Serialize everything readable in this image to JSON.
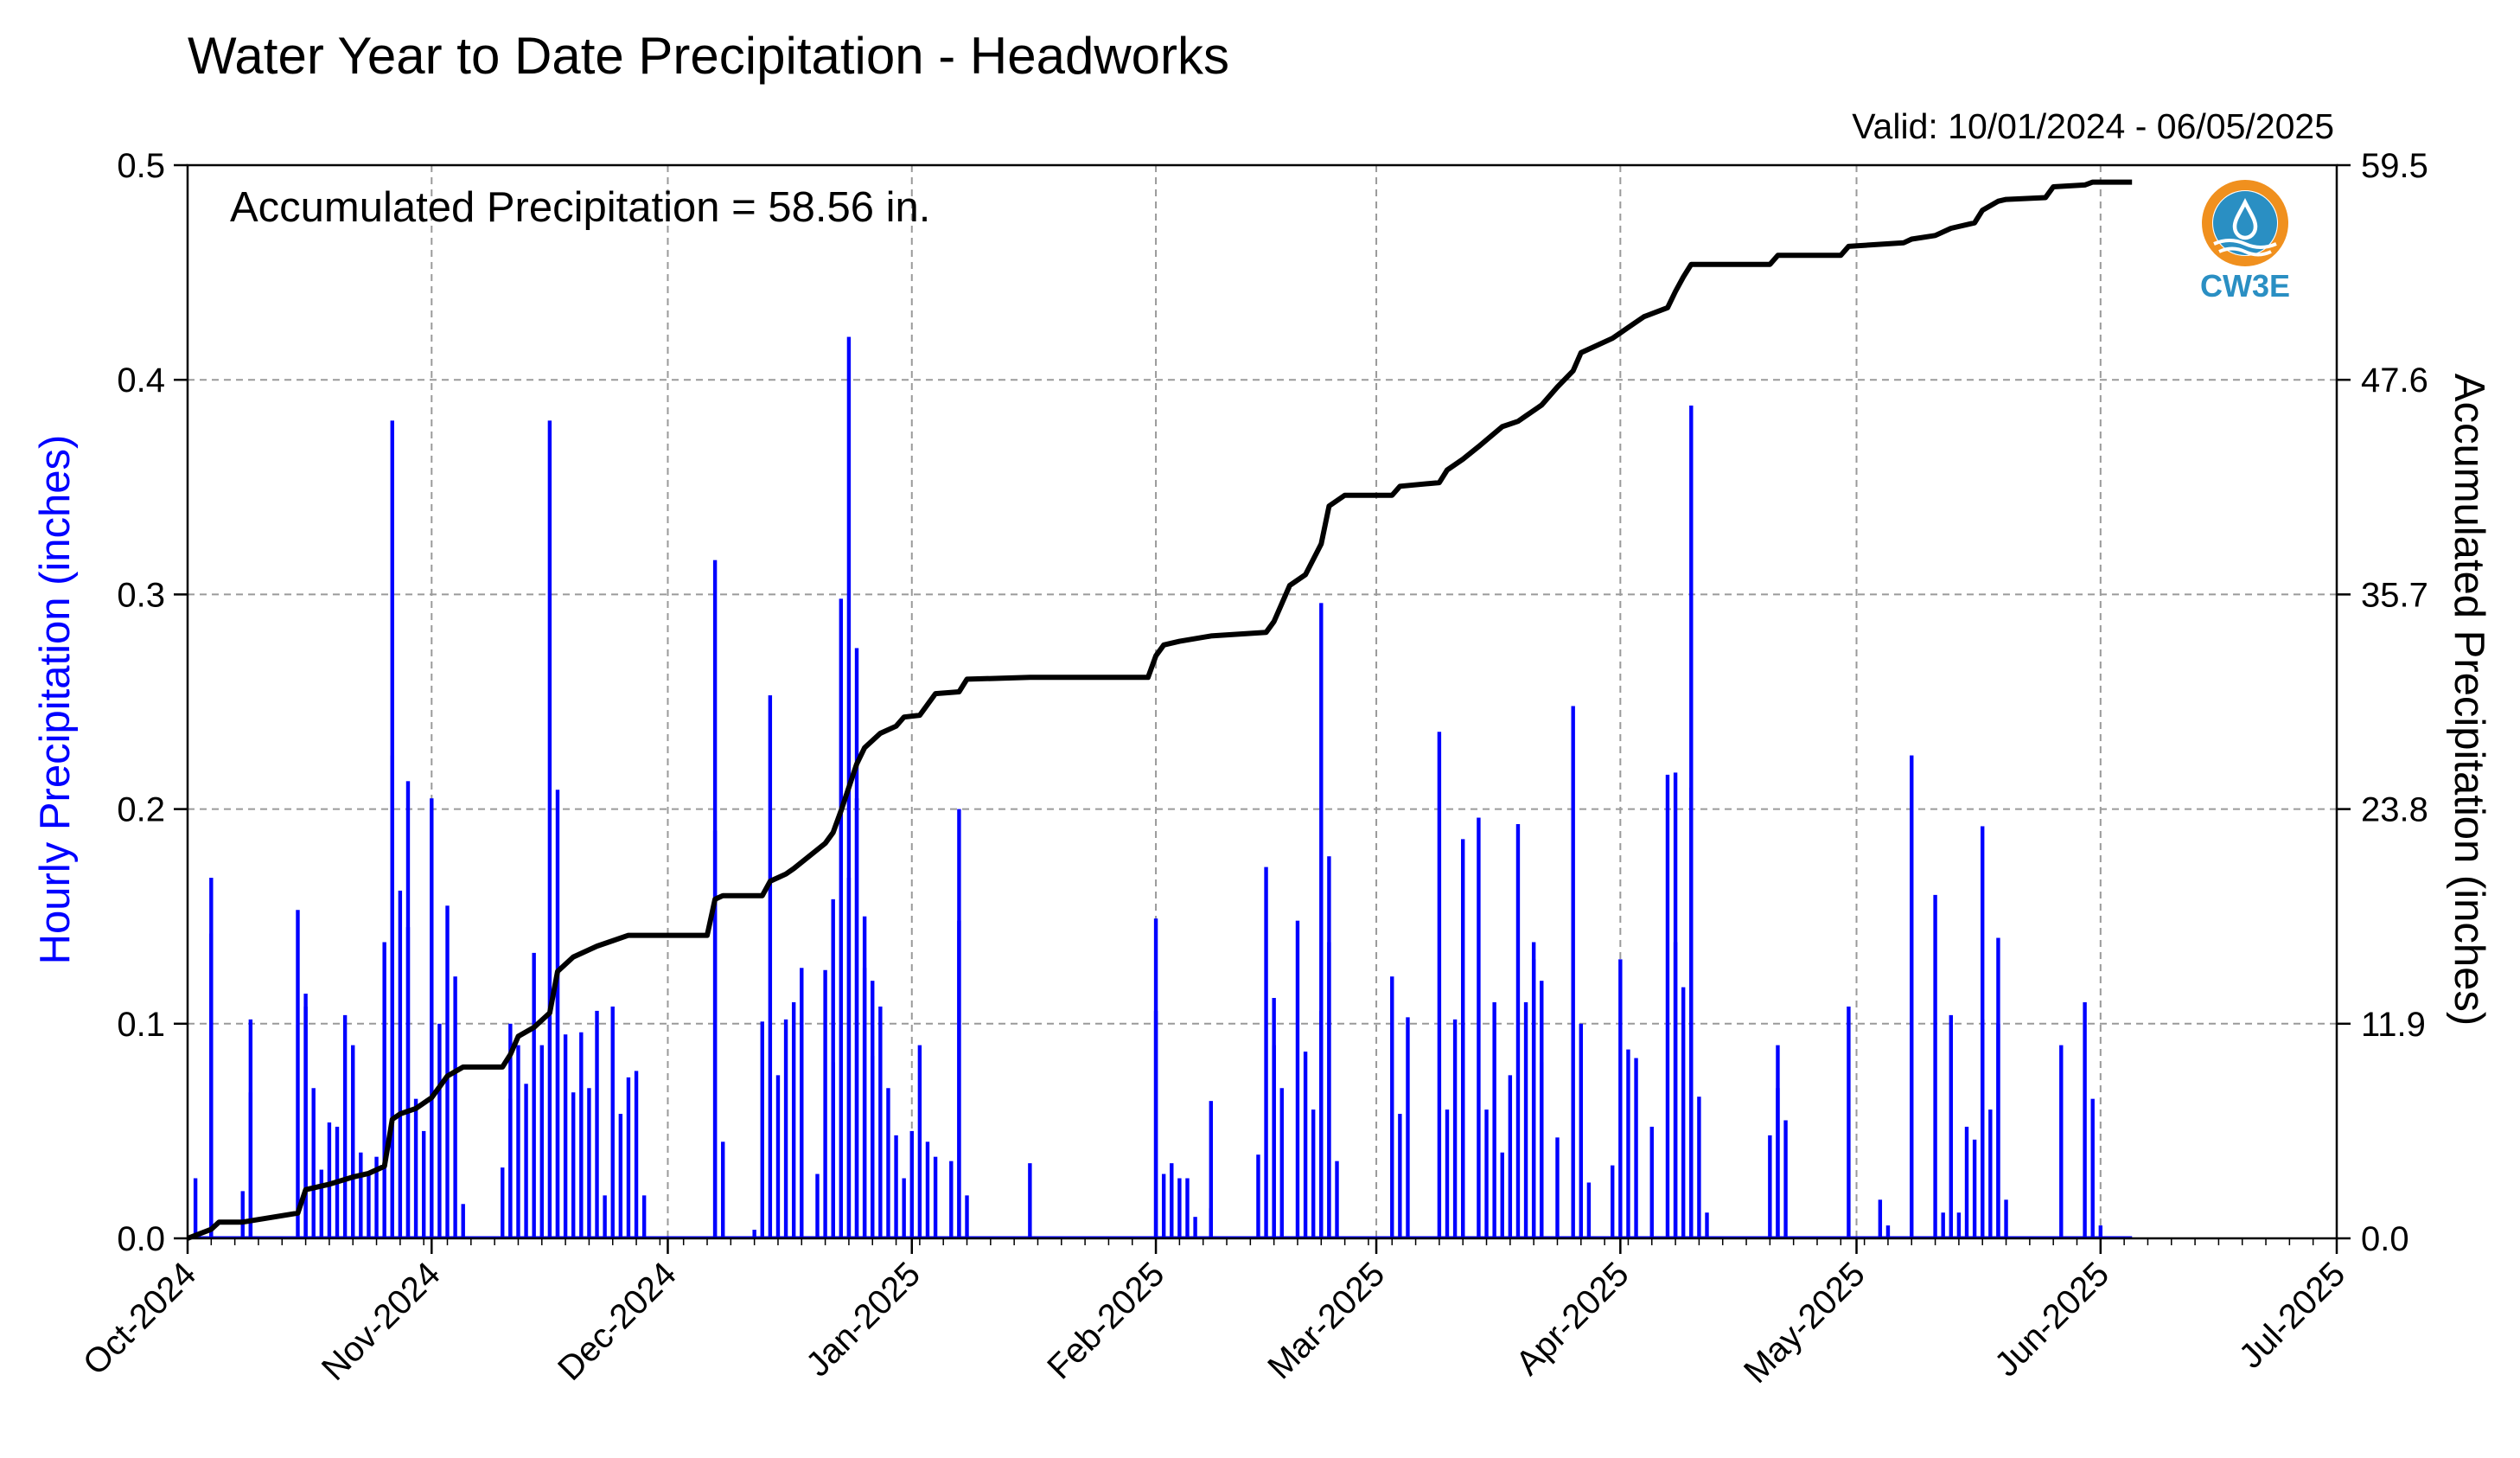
{
  "chart_data": {
    "type": "bar",
    "title": "Water Year to Date Precipitation - Headworks",
    "subtitle": "Valid: 10/01/2024 - 06/05/2025",
    "annotation": "Accumulated Precipitation = 58.56 in.",
    "ylabel": "Hourly Precipitation (inches)",
    "y2label": "Accumulated Precipitation (inches)",
    "ylim": [
      0,
      0.5
    ],
    "y2lim": [
      0,
      59.5
    ],
    "yticks": [
      "0.0",
      "0.1",
      "0.2",
      "0.3",
      "0.4",
      "0.5"
    ],
    "y2ticks": [
      "0.0",
      "11.9",
      "23.8",
      "35.7",
      "47.6",
      "59.5"
    ],
    "xlim": [
      "2024-10-01",
      "2025-07-01"
    ],
    "xtick_dates": [
      "2024-10-01",
      "2024-11-01",
      "2024-12-01",
      "2025-01-01",
      "2025-02-01",
      "2025-03-01",
      "2025-04-01",
      "2025-05-01",
      "2025-06-01",
      "2025-07-01"
    ],
    "xticks": [
      "Oct-2024",
      "Nov-2024",
      "Dec-2024",
      "Jan-2025",
      "Feb-2025",
      "Mar-2025",
      "Apr-2025",
      "May-2025",
      "Jun-2025",
      "Jul-2025"
    ],
    "grid": true,
    "colors": {
      "hourly": "#0000ff",
      "accumulated": "#000000"
    },
    "series": [
      {
        "type": "bar",
        "values": [
          [
            "2024-10-02",
            0.028
          ],
          [
            "2024-10-04",
            0.142
          ],
          [
            "2024-10-04",
            0.168
          ],
          [
            "2024-10-08",
            0.022
          ],
          [
            "2024-10-09",
            0.068
          ],
          [
            "2024-10-09",
            0.102
          ],
          [
            "2024-10-15",
            0.153
          ],
          [
            "2024-10-16",
            0.108
          ],
          [
            "2024-10-16",
            0.114
          ],
          [
            "2024-10-17",
            0.07
          ],
          [
            "2024-10-18",
            0.032
          ],
          [
            "2024-10-19",
            0.054
          ],
          [
            "2024-10-20",
            0.052
          ],
          [
            "2024-10-21",
            0.104
          ],
          [
            "2024-10-22",
            0.09
          ],
          [
            "2024-10-23",
            0.04
          ],
          [
            "2024-10-24",
            0.03
          ],
          [
            "2024-10-25",
            0.038
          ],
          [
            "2024-10-26",
            0.138
          ],
          [
            "2024-10-27",
            0.225
          ],
          [
            "2024-10-27",
            0.381
          ],
          [
            "2024-10-28",
            0.162
          ],
          [
            "2024-10-29",
            0.145
          ],
          [
            "2024-10-29",
            0.213
          ],
          [
            "2024-10-30",
            0.065
          ],
          [
            "2024-10-31",
            0.05
          ],
          [
            "2024-11-01",
            0.205
          ],
          [
            "2024-11-02",
            0.1
          ],
          [
            "2024-11-03",
            0.155
          ],
          [
            "2024-11-04",
            0.122
          ],
          [
            "2024-11-05",
            0.016
          ],
          [
            "2024-11-10",
            0.033
          ],
          [
            "2024-11-11",
            0.065
          ],
          [
            "2024-11-11",
            0.1
          ],
          [
            "2024-11-12",
            0.09
          ],
          [
            "2024-11-13",
            0.072
          ],
          [
            "2024-11-14",
            0.133
          ],
          [
            "2024-11-15",
            0.09
          ],
          [
            "2024-11-16",
            0.381
          ],
          [
            "2024-11-17",
            0.209
          ],
          [
            "2024-11-17",
            0.124
          ],
          [
            "2024-11-18",
            0.095
          ],
          [
            "2024-11-19",
            0.068
          ],
          [
            "2024-11-20",
            0.096
          ],
          [
            "2024-11-21",
            0.07
          ],
          [
            "2024-11-22",
            0.106
          ],
          [
            "2024-11-23",
            0.02
          ],
          [
            "2024-11-24",
            0.108
          ],
          [
            "2024-11-25",
            0.058
          ],
          [
            "2024-11-26",
            0.075
          ],
          [
            "2024-11-27",
            0.078
          ],
          [
            "2024-11-28",
            0.02
          ],
          [
            "2024-12-07",
            0.316
          ],
          [
            "2024-12-07",
            0.19
          ],
          [
            "2024-12-08",
            0.045
          ],
          [
            "2024-12-12",
            0.004
          ],
          [
            "2024-12-13",
            0.101
          ],
          [
            "2024-12-14",
            0.253
          ],
          [
            "2024-12-15",
            0.076
          ],
          [
            "2024-12-16",
            0.102
          ],
          [
            "2024-12-17",
            0.11
          ],
          [
            "2024-12-18",
            0.126
          ],
          [
            "2024-12-20",
            0.03
          ],
          [
            "2024-12-21",
            0.125
          ],
          [
            "2024-12-22",
            0.082
          ],
          [
            "2024-12-22",
            0.158
          ],
          [
            "2024-12-23",
            0.298
          ],
          [
            "2024-12-24",
            0.168
          ],
          [
            "2024-12-24",
            0.42
          ],
          [
            "2024-12-25",
            0.275
          ],
          [
            "2024-12-25",
            0.205
          ],
          [
            "2024-12-26",
            0.126
          ],
          [
            "2024-12-26",
            0.15
          ],
          [
            "2024-12-27",
            0.12
          ],
          [
            "2024-12-27",
            0.085
          ],
          [
            "2024-12-28",
            0.108
          ],
          [
            "2024-12-29",
            0.07
          ],
          [
            "2024-12-30",
            0.048
          ],
          [
            "2024-12-31",
            0.028
          ],
          [
            "2025-01-01",
            0.05
          ],
          [
            "2025-01-02",
            0.09
          ],
          [
            "2025-01-03",
            0.045
          ],
          [
            "2025-01-04",
            0.038
          ],
          [
            "2025-01-06",
            0.036
          ],
          [
            "2025-01-07",
            0.148
          ],
          [
            "2025-01-07",
            0.2
          ],
          [
            "2025-01-08",
            0.02
          ],
          [
            "2025-01-16",
            0.035
          ],
          [
            "2025-02-01",
            0.106
          ],
          [
            "2025-02-01",
            0.149
          ],
          [
            "2025-02-02",
            0.03
          ],
          [
            "2025-02-03",
            0.035
          ],
          [
            "2025-02-04",
            0.028
          ],
          [
            "2025-02-05",
            0.028
          ],
          [
            "2025-02-06",
            0.01
          ],
          [
            "2025-02-08",
            0.064
          ],
          [
            "2025-02-08",
            0.014
          ],
          [
            "2025-02-14",
            0.039
          ],
          [
            "2025-02-15",
            0.173
          ],
          [
            "2025-02-16",
            0.112
          ],
          [
            "2025-02-16",
            0.09
          ],
          [
            "2025-02-17",
            0.07
          ],
          [
            "2025-02-19",
            0.148
          ],
          [
            "2025-02-20",
            0.087
          ],
          [
            "2025-02-21",
            0.06
          ],
          [
            "2025-02-22",
            0.106
          ],
          [
            "2025-02-22",
            0.296
          ],
          [
            "2025-02-23",
            0.178
          ],
          [
            "2025-02-23",
            0.138
          ],
          [
            "2025-02-24",
            0.036
          ],
          [
            "2025-03-03",
            0.122
          ],
          [
            "2025-03-04",
            0.058
          ],
          [
            "2025-03-05",
            0.103
          ],
          [
            "2025-03-09",
            0.236
          ],
          [
            "2025-03-10",
            0.06
          ],
          [
            "2025-03-11",
            0.102
          ],
          [
            "2025-03-12",
            0.186
          ],
          [
            "2025-03-12",
            0.1
          ],
          [
            "2025-03-14",
            0.196
          ],
          [
            "2025-03-15",
            0.06
          ],
          [
            "2025-03-16",
            0.11
          ],
          [
            "2025-03-17",
            0.04
          ],
          [
            "2025-03-18",
            0.076
          ],
          [
            "2025-03-19",
            0.193
          ],
          [
            "2025-03-20",
            0.11
          ],
          [
            "2025-03-21",
            0.13
          ],
          [
            "2025-03-21",
            0.138
          ],
          [
            "2025-03-22",
            0.082
          ],
          [
            "2025-03-22",
            0.12
          ],
          [
            "2025-03-24",
            0.047
          ],
          [
            "2025-03-26",
            0.248
          ],
          [
            "2025-03-27",
            0.1
          ],
          [
            "2025-03-28",
            0.026
          ],
          [
            "2025-03-31",
            0.034
          ],
          [
            "2025-04-01",
            0.13
          ],
          [
            "2025-04-02",
            0.088
          ],
          [
            "2025-04-03",
            0.084
          ],
          [
            "2025-04-05",
            0.052
          ],
          [
            "2025-04-07",
            0.216
          ],
          [
            "2025-04-08",
            0.217
          ],
          [
            "2025-04-08",
            0.138
          ],
          [
            "2025-04-09",
            0.117
          ],
          [
            "2025-04-10",
            0.21
          ],
          [
            "2025-04-10",
            0.388
          ],
          [
            "2025-04-11",
            0.066
          ],
          [
            "2025-04-12",
            0.012
          ],
          [
            "2025-04-20",
            0.048
          ],
          [
            "2025-04-21",
            0.07
          ],
          [
            "2025-04-21",
            0.09
          ],
          [
            "2025-04-22",
            0.055
          ],
          [
            "2025-04-30",
            0.108
          ],
          [
            "2025-05-04",
            0.018
          ],
          [
            "2025-05-05",
            0.006
          ],
          [
            "2025-05-08",
            0.225
          ],
          [
            "2025-05-11",
            0.16
          ],
          [
            "2025-05-12",
            0.012
          ],
          [
            "2025-05-13",
            0.104
          ],
          [
            "2025-05-14",
            0.012
          ],
          [
            "2025-05-15",
            0.052
          ],
          [
            "2025-05-16",
            0.046
          ],
          [
            "2025-05-17",
            0.192
          ],
          [
            "2025-05-17",
            0.102
          ],
          [
            "2025-05-18",
            0.06
          ],
          [
            "2025-05-19",
            0.14
          ],
          [
            "2025-05-19",
            0.1
          ],
          [
            "2025-05-20",
            0.018
          ],
          [
            "2025-05-27",
            0.09
          ],
          [
            "2025-05-30",
            0.11
          ],
          [
            "2025-05-31",
            0.065
          ],
          [
            "2025-06-01",
            0.006
          ]
        ]
      },
      {
        "type": "line",
        "x": [
          "2024-10-01",
          "2024-10-04",
          "2024-10-05",
          "2024-10-08",
          "2024-10-15",
          "2024-10-16",
          "2024-10-19",
          "2024-10-22",
          "2024-10-24",
          "2024-10-26",
          "2024-10-27",
          "2024-10-28",
          "2024-10-30",
          "2024-11-01",
          "2024-11-03",
          "2024-11-05",
          "2024-11-10",
          "2024-11-11",
          "2024-11-12",
          "2024-11-14",
          "2024-11-16",
          "2024-11-17",
          "2024-11-19",
          "2024-11-22",
          "2024-11-24",
          "2024-11-26",
          "2024-12-06",
          "2024-12-07",
          "2024-12-08",
          "2024-12-13",
          "2024-12-14",
          "2024-12-16",
          "2024-12-17",
          "2024-12-21",
          "2024-12-22",
          "2024-12-23",
          "2024-12-24",
          "2024-12-25",
          "2024-12-26",
          "2024-12-28",
          "2024-12-30",
          "2024-12-31",
          "2025-01-02",
          "2025-01-04",
          "2025-01-07",
          "2025-01-08",
          "2025-01-16",
          "2025-01-31",
          "2025-02-01",
          "2025-02-02",
          "2025-02-04",
          "2025-02-08",
          "2025-02-15",
          "2025-02-16",
          "2025-02-18",
          "2025-02-20",
          "2025-02-22",
          "2025-02-23",
          "2025-02-25",
          "2025-03-03",
          "2025-03-04",
          "2025-03-09",
          "2025-03-10",
          "2025-03-12",
          "2025-03-14",
          "2025-03-17",
          "2025-03-19",
          "2025-03-20",
          "2025-03-22",
          "2025-03-24",
          "2025-03-26",
          "2025-03-27",
          "2025-03-31",
          "2025-04-01",
          "2025-04-02",
          "2025-04-04",
          "2025-04-07",
          "2025-04-08",
          "2025-04-09",
          "2025-04-10",
          "2025-04-13",
          "2025-04-20",
          "2025-04-21",
          "2025-04-29",
          "2025-04-30",
          "2025-05-07",
          "2025-05-08",
          "2025-05-11",
          "2025-05-13",
          "2025-05-16",
          "2025-05-17",
          "2025-05-19",
          "2025-05-20",
          "2025-05-25",
          "2025-05-26",
          "2025-05-30",
          "2025-05-31",
          "2025-06-05"
        ],
        "values": [
          0.0,
          0.5,
          0.9,
          0.9,
          1.4,
          2.7,
          3.0,
          3.4,
          3.6,
          4.0,
          6.6,
          6.9,
          7.2,
          7.8,
          9.0,
          9.5,
          9.5,
          10.2,
          11.2,
          11.7,
          12.5,
          14.8,
          15.6,
          16.2,
          16.5,
          16.8,
          16.8,
          18.8,
          19.0,
          19.0,
          19.8,
          20.2,
          20.5,
          21.9,
          22.5,
          23.7,
          25.0,
          26.3,
          27.2,
          28.0,
          28.4,
          28.9,
          29.0,
          30.2,
          30.3,
          31.0,
          31.1,
          31.1,
          32.3,
          32.9,
          33.1,
          33.4,
          33.6,
          34.2,
          36.2,
          36.8,
          38.5,
          40.6,
          41.2,
          41.2,
          41.7,
          41.9,
          42.6,
          43.2,
          43.9,
          45.0,
          45.3,
          45.6,
          46.2,
          47.2,
          48.1,
          49.1,
          49.9,
          50.2,
          50.5,
          51.1,
          51.6,
          52.5,
          53.3,
          54.0,
          54.0,
          54.0,
          54.5,
          54.5,
          55.0,
          55.2,
          55.4,
          55.6,
          56.0,
          56.3,
          57.0,
          57.5,
          57.6,
          57.7,
          58.3,
          58.4,
          58.56,
          58.56
        ]
      }
    ]
  },
  "logo": {
    "text": "CW3E",
    "colors": {
      "orange": "#f0901e",
      "blue": "#2a8fc3",
      "dark_blue": "#1d6f98"
    }
  }
}
